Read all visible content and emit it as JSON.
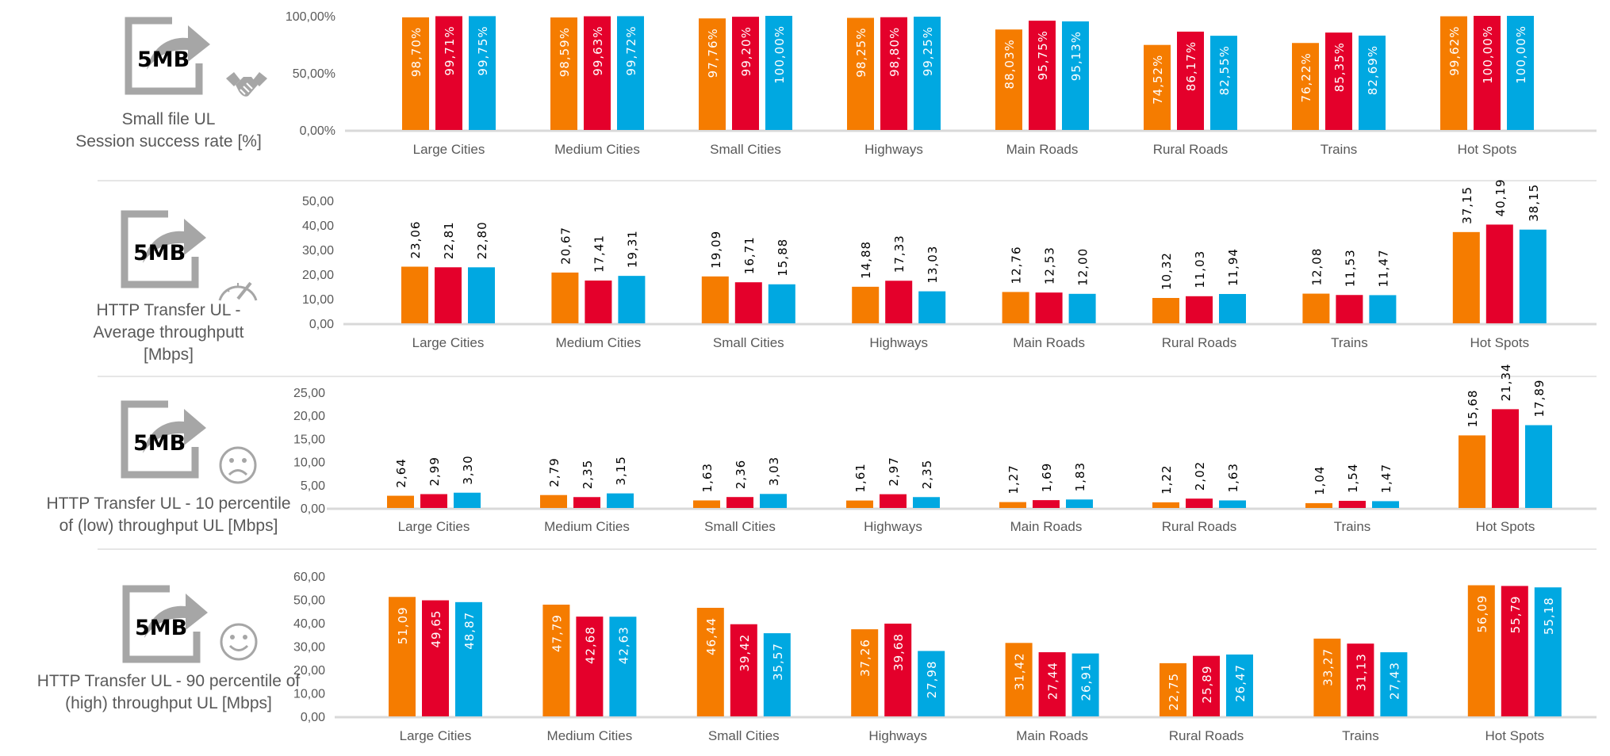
{
  "icon_label": "5MB",
  "colors": {
    "series1": "#F57C00",
    "series2": "#E4002B",
    "series3": "#00A8E1",
    "axis": "#D9D9D9",
    "text": "#595959"
  },
  "panels": [
    {
      "title_lines": [
        "Small file UL",
        "Session success rate [%]"
      ],
      "sub_icon": "handshake-icon"
    },
    {
      "title_lines": [
        "HTTP Transfer UL -",
        "Average throughputt",
        "[Mbps]"
      ],
      "sub_icon": "speedometer-icon"
    },
    {
      "title_lines": [
        "HTTP Transfer UL - 10 percentile",
        "of (low) throughput UL  [Mbps]"
      ],
      "sub_icon": "sad-face-icon"
    },
    {
      "title_lines": [
        "HTTP Transfer UL - 90 percentile of",
        "(high) throughput UL [Mbps]"
      ],
      "sub_icon": "smiley-face-icon"
    }
  ],
  "chart_data": [
    {
      "type": "bar",
      "categories": [
        "Large Cities",
        "Medium Cities",
        "Small Cities",
        "Highways",
        "Main Roads",
        "Rural Roads",
        "Trains",
        "Hot Spots"
      ],
      "ylim": [
        0,
        100
      ],
      "yticks": [
        "0,00%",
        "50,00%",
        "100,00%"
      ],
      "ytick_values": [
        0,
        50,
        100
      ],
      "label_position": "inside",
      "series": [
        {
          "values": [
            98.7,
            98.59,
            97.76,
            98.25,
            88.03,
            74.52,
            76.22,
            99.62
          ],
          "labels": [
            "98,70%",
            "98,59%",
            "97,76%",
            "98,25%",
            "88,03%",
            "74,52%",
            "76,22%",
            "99,62%"
          ]
        },
        {
          "values": [
            99.71,
            99.63,
            99.2,
            98.8,
            95.75,
            86.17,
            85.35,
            100.0
          ],
          "labels": [
            "99,71%",
            "99,63%",
            "99,20%",
            "98,80%",
            "95,75%",
            "86,17%",
            "85,35%",
            "100,00%"
          ]
        },
        {
          "values": [
            99.75,
            99.72,
            100.0,
            99.25,
            95.13,
            82.55,
            82.69,
            100.0
          ],
          "labels": [
            "99,75%",
            "99,72%",
            "100,00%",
            "99,25%",
            "95,13%",
            "82,55%",
            "82,69%",
            "100,00%"
          ]
        }
      ]
    },
    {
      "type": "bar",
      "categories": [
        "Large Cities",
        "Medium Cities",
        "Small Cities",
        "Highways",
        "Main Roads",
        "Rural Roads",
        "Trains",
        "Hot Spots"
      ],
      "ylim": [
        0,
        50
      ],
      "yticks": [
        "0,00",
        "10,00",
        "20,00",
        "30,00",
        "40,00",
        "50,00"
      ],
      "ytick_values": [
        0,
        10,
        20,
        30,
        40,
        50
      ],
      "label_position": "outside",
      "series": [
        {
          "values": [
            23.06,
            20.67,
            19.09,
            14.88,
            12.76,
            10.32,
            12.08,
            37.15
          ],
          "labels": [
            "23,06",
            "20,67",
            "19,09",
            "14,88",
            "12,76",
            "10,32",
            "12,08",
            "37,15"
          ]
        },
        {
          "values": [
            22.81,
            17.41,
            16.71,
            17.33,
            12.53,
            11.03,
            11.53,
            40.19
          ],
          "labels": [
            "22,81",
            "17,41",
            "16,71",
            "17,33",
            "12,53",
            "11,03",
            "11,53",
            "40,19"
          ]
        },
        {
          "values": [
            22.8,
            19.31,
            15.88,
            13.03,
            12.0,
            11.94,
            11.47,
            38.15
          ],
          "labels": [
            "22,80",
            "19,31",
            "15,88",
            "13,03",
            "12,00",
            "11,94",
            "11,47",
            "38,15"
          ]
        }
      ]
    },
    {
      "type": "bar",
      "categories": [
        "Large Cities",
        "Medium Cities",
        "Small Cities",
        "Highways",
        "Main Roads",
        "Rural Roads",
        "Trains",
        "Hot Spots"
      ],
      "ylim": [
        0,
        25
      ],
      "yticks": [
        "0,00",
        "5,00",
        "10,00",
        "15,00",
        "20,00",
        "25,00"
      ],
      "ytick_values": [
        0,
        5,
        10,
        15,
        20,
        25
      ],
      "label_position": "outside",
      "series": [
        {
          "values": [
            2.64,
            2.79,
            1.63,
            1.61,
            1.27,
            1.22,
            1.04,
            15.68
          ],
          "labels": [
            "2,64",
            "2,79",
            "1,63",
            "1,61",
            "1,27",
            "1,22",
            "1,04",
            "15,68"
          ]
        },
        {
          "values": [
            2.99,
            2.35,
            2.36,
            2.97,
            1.69,
            2.02,
            1.54,
            21.34
          ],
          "labels": [
            "2,99",
            "2,35",
            "2,36",
            "2,97",
            "1,69",
            "2,02",
            "1,54",
            "21,34"
          ]
        },
        {
          "values": [
            3.3,
            3.15,
            3.03,
            2.35,
            1.83,
            1.63,
            1.47,
            17.89
          ],
          "labels": [
            "3,30",
            "3,15",
            "3,03",
            "2,35",
            "1,83",
            "1,63",
            "1,47",
            "17,89"
          ]
        }
      ]
    },
    {
      "type": "bar",
      "categories": [
        "Large Cities",
        "Medium Cities",
        "Small Cities",
        "Highways",
        "Main Roads",
        "Rural Roads",
        "Trains",
        "Hot Spots"
      ],
      "ylim": [
        0,
        60
      ],
      "yticks": [
        "0,00",
        "10,00",
        "20,00",
        "30,00",
        "40,00",
        "50,00",
        "60,00"
      ],
      "ytick_values": [
        0,
        10,
        20,
        30,
        40,
        50,
        60
      ],
      "label_position": "inside",
      "series": [
        {
          "values": [
            51.09,
            47.79,
            46.44,
            37.26,
            31.42,
            22.75,
            33.27,
            56.09
          ],
          "labels": [
            "51,09",
            "47,79",
            "46,44",
            "37,26",
            "31,42",
            "22,75",
            "33,27",
            "56,09"
          ]
        },
        {
          "values": [
            49.65,
            42.68,
            39.42,
            39.68,
            27.44,
            25.89,
            31.13,
            55.79
          ],
          "labels": [
            "49,65",
            "42,68",
            "39,42",
            "39,68",
            "27,44",
            "25,89",
            "31,13",
            "55,79"
          ]
        },
        {
          "values": [
            48.87,
            42.63,
            35.57,
            27.98,
            26.91,
            26.47,
            27.43,
            55.18
          ],
          "labels": [
            "48,87",
            "42,63",
            "35,57",
            "27,98",
            "26,91",
            "26,47",
            "27,43",
            "55,18"
          ]
        }
      ]
    }
  ]
}
